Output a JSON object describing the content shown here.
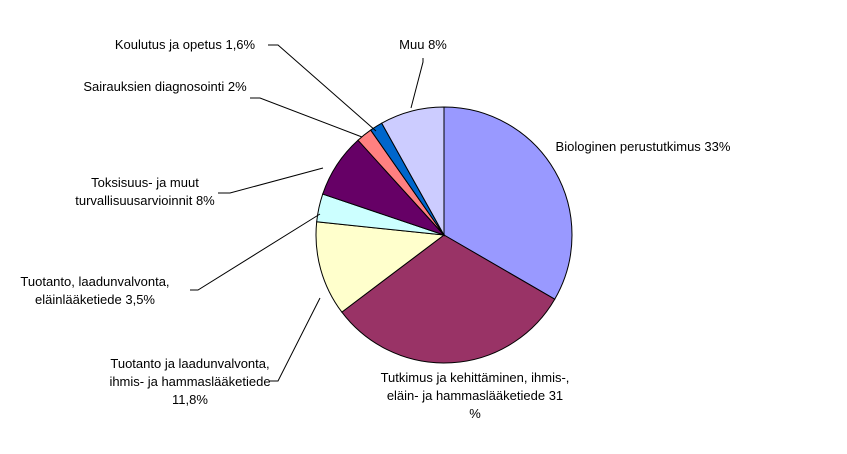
{
  "chart_data": {
    "type": "pie",
    "categories": [
      "Biologinen perustutkimus",
      "Tutkimus ja kehittäminen, ihmis-, eläin- ja hammaslääketiede",
      "Tuotanto ja laadunvalvonta, ihmis- ja hammaslääketiede",
      "Tuotanto, laadunvalvonta, eläinlääketiede",
      "Toksisuus- ja muut turvallisuusarvioinnit",
      "Sairauksien diagnosointi",
      "Koulutus ja opetus",
      "Muu"
    ],
    "values": [
      33,
      31,
      11.8,
      3.5,
      8,
      2,
      1.6,
      8
    ],
    "value_labels": [
      "33%",
      "31 %",
      "11,8%",
      "3,5%",
      "8%",
      "2%",
      "1,6%",
      "8%"
    ],
    "colors": [
      "#9999ff",
      "#993366",
      "#ffffcc",
      "#ccffff",
      "#660066",
      "#ff8080",
      "#0066cc",
      "#ccccff"
    ]
  }
}
